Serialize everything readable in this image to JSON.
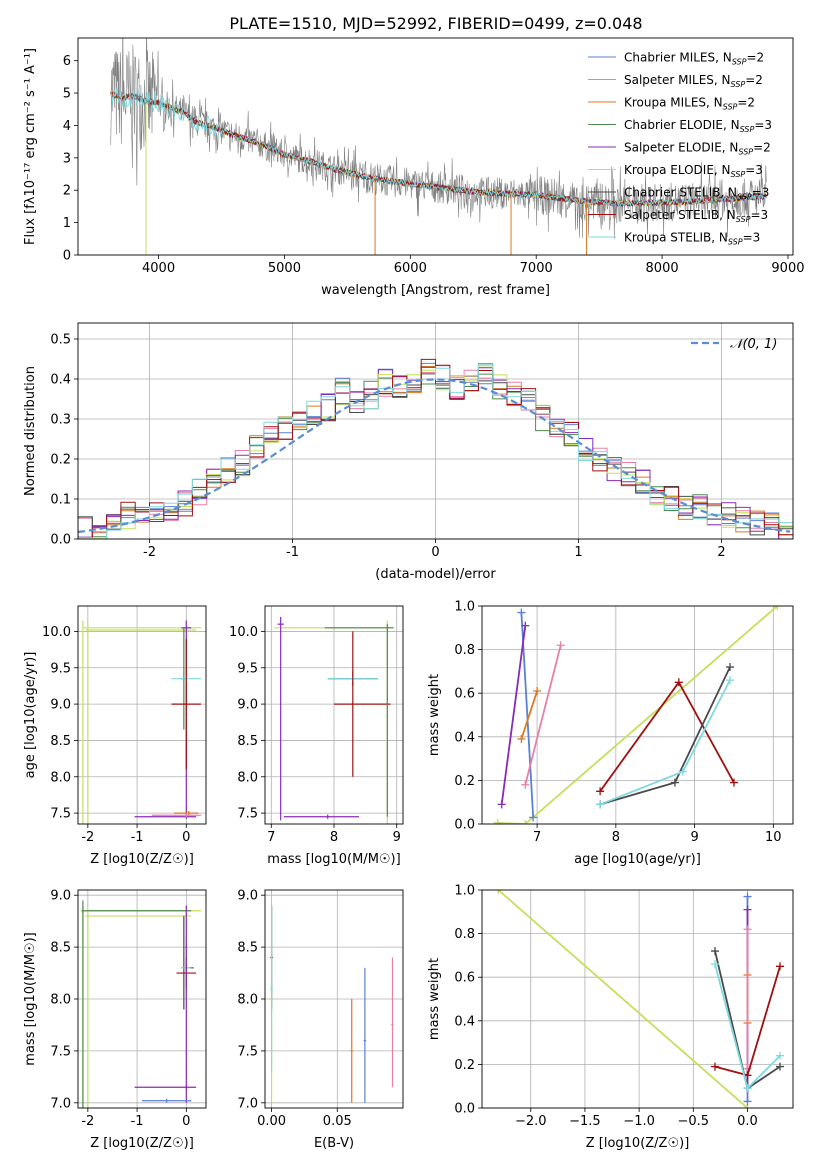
{
  "figure": {
    "title": "PLATE=1510, MJD=52992, FIBERID=0499, z=0.048"
  },
  "colors": {
    "Chabrier MILES": "#5b7fd6",
    "Salpeter MILES": "#e97fa8",
    "Kroupa MILES": "#d97a1e",
    "Chabrier ELODIE": "#4d8a4d",
    "Salpeter ELODIE": "#8a2ab8",
    "Kroupa ELODIE": "#c3e05a",
    "Chabrier STELIB": "#4a4a4a",
    "Salpeter STELIB": "#a01010",
    "Kroupa STELIB": "#7ed9e0",
    "data": "#7f7f7f",
    "gaussian": "#5b8dd6"
  },
  "chart_data": [
    {
      "id": "spectrum",
      "type": "line",
      "xlabel": "wavelength [Angstrom, rest frame]",
      "ylabel": "Flux [fλ10⁻¹⁷ erg cm⁻² s⁻¹ A⁻¹]",
      "xlim": [
        3360,
        9040
      ],
      "ylim": [
        0,
        6.7
      ],
      "xticks": [
        4000,
        5000,
        6000,
        7000,
        8000,
        9000
      ],
      "yticks": [
        0,
        1,
        2,
        3,
        4,
        5,
        6
      ],
      "legend_position": "top-right",
      "legend": [
        {
          "model": "Chabrier MILES",
          "label": "Chabrier MILES, N",
          "sub": "SSP",
          "eq": "=2"
        },
        {
          "model": "Salpeter MILES",
          "label": "Salpeter MILES, N",
          "sub": "SSP",
          "eq": "=2"
        },
        {
          "model": "Kroupa MILES",
          "label": "Kroupa MILES, N",
          "sub": "SSP",
          "eq": "=2"
        },
        {
          "model": "Chabrier ELODIE",
          "label": "Chabrier ELODIE, N",
          "sub": "SSP",
          "eq": "=3"
        },
        {
          "model": "Salpeter ELODIE",
          "label": "Salpeter ELODIE, N",
          "sub": "SSP",
          "eq": "=2"
        },
        {
          "model": "Kroupa ELODIE",
          "label": "Kroupa ELODIE, N",
          "sub": "SSP",
          "eq": "=3"
        },
        {
          "model": "Chabrier STELIB",
          "label": "Chabrier STELIB, N",
          "sub": "SSP",
          "eq": "=3"
        },
        {
          "model": "Salpeter STELIB",
          "label": "Salpeter STELIB, N",
          "sub": "SSP",
          "eq": "=3"
        },
        {
          "model": "Kroupa STELIB",
          "label": "Kroupa STELIB, N",
          "sub": "SSP",
          "eq": "=3"
        }
      ],
      "data_range": [
        3620,
        8830
      ],
      "continuum": [
        [
          3620,
          5.0
        ],
        [
          3700,
          4.85
        ],
        [
          3800,
          4.9
        ],
        [
          3900,
          4.75
        ],
        [
          4000,
          4.7
        ],
        [
          4100,
          4.55
        ],
        [
          4200,
          4.4
        ],
        [
          4300,
          4.1
        ],
        [
          4400,
          4.0
        ],
        [
          4600,
          3.7
        ],
        [
          4800,
          3.45
        ],
        [
          5000,
          3.1
        ],
        [
          5200,
          2.9
        ],
        [
          5400,
          2.65
        ],
        [
          5600,
          2.45
        ],
        [
          5800,
          2.3
        ],
        [
          6000,
          2.2
        ],
        [
          6200,
          2.1
        ],
        [
          6400,
          2.0
        ],
        [
          6600,
          1.92
        ],
        [
          6800,
          1.9
        ],
        [
          7000,
          1.85
        ],
        [
          7200,
          1.75
        ],
        [
          7400,
          1.65
        ],
        [
          7600,
          1.6
        ],
        [
          7800,
          1.6
        ],
        [
          8000,
          1.62
        ],
        [
          8200,
          1.65
        ],
        [
          8400,
          1.7
        ],
        [
          8600,
          1.75
        ],
        [
          8800,
          1.8
        ]
      ]
    },
    {
      "id": "residuals",
      "type": "histogram",
      "xlabel": "(data-model)/error",
      "ylabel": "Normed distribution",
      "xlim": [
        -2.5,
        2.5
      ],
      "ylim": [
        0,
        0.54
      ],
      "xticks": [
        -2,
        -1,
        0,
        1,
        2
      ],
      "yticks": [
        0.0,
        0.1,
        0.2,
        0.3,
        0.4,
        0.5
      ],
      "ytick_labels": [
        "0.0",
        "0.1",
        "0.2",
        "0.3",
        "0.4",
        "0.5"
      ],
      "grid": true,
      "legend_position": "top-right",
      "gaussian_label": "𝒩(0, 1)",
      "bin_width": 0.1,
      "bin_start": -2.5,
      "reference": [
        0.025,
        0.03,
        0.04,
        0.06,
        0.062,
        0.063,
        0.07,
        0.09,
        0.12,
        0.14,
        0.17,
        0.19,
        0.23,
        0.27,
        0.28,
        0.29,
        0.31,
        0.33,
        0.37,
        0.34,
        0.36,
        0.39,
        0.38,
        0.4,
        0.42,
        0.4,
        0.38,
        0.39,
        0.41,
        0.38,
        0.36,
        0.35,
        0.3,
        0.28,
        0.26,
        0.22,
        0.2,
        0.17,
        0.16,
        0.14,
        0.12,
        0.1,
        0.08,
        0.08,
        0.06,
        0.06,
        0.05,
        0.04,
        0.03,
        0.02
      ]
    },
    {
      "id": "age-vs-Z",
      "type": "errorbar",
      "xlabel": "Z [log10(Z/Z☉)]",
      "ylabel": "age  [log10(age/yr)]",
      "xlim": [
        -2.2,
        0.4
      ],
      "ylim": [
        7.35,
        10.35
      ],
      "xticks": [
        -2,
        -1,
        0
      ],
      "yticks": [
        7.5,
        8.0,
        8.5,
        9.0,
        9.5,
        10.0
      ],
      "grid": true,
      "points": [
        {
          "model": "Kroupa ELODIE",
          "x": -2.1,
          "y": 10.05,
          "xerr": [
            0.02,
            2.4
          ],
          "yerr": [
            2.7,
            0.1
          ]
        },
        {
          "model": "Kroupa ELODIE",
          "x": -2.0,
          "y": 10.02,
          "xerr": [
            0.05,
            2.2
          ],
          "yerr": [
            2.7,
            0.1
          ]
        },
        {
          "model": "Salpeter ELODIE",
          "x": 0.0,
          "y": 10.05,
          "xerr": [
            0.1,
            0.1
          ],
          "yerr": [
            2.6,
            0.1
          ]
        },
        {
          "model": "Salpeter ELODIE",
          "x": 0.0,
          "y": 7.45,
          "xerr": [
            1.05,
            0.2
          ],
          "yerr": [
            0.03,
            0.03
          ]
        },
        {
          "model": "Chabrier ELODIE",
          "x": -0.05,
          "y": 9.35,
          "xerr": [
            0.05,
            0.05
          ],
          "yerr": [
            0.7,
            0.7
          ]
        },
        {
          "model": "Kroupa STELIB",
          "x": 0.0,
          "y": 9.35,
          "xerr": [
            0.3,
            0.3
          ],
          "yerr": [
            0.05,
            0.05
          ]
        },
        {
          "model": "Salpeter STELIB",
          "x": 0.0,
          "y": 9.0,
          "xerr": [
            0.3,
            0.3
          ],
          "yerr": [
            0.9,
            0.9
          ]
        },
        {
          "model": "Salpeter MILES",
          "x": 0.0,
          "y": 7.47,
          "xerr": [
            0.7,
            0.3
          ],
          "yerr": [
            0.03,
            0.03
          ]
        },
        {
          "model": "Kroupa MILES",
          "x": 0.05,
          "y": 7.5,
          "xerr": [
            0.3,
            0.2
          ],
          "yerr": [
            0.03,
            0.03
          ]
        }
      ]
    },
    {
      "id": "age-vs-mass",
      "type": "errorbar",
      "xlabel": "mass [log10(M/M☉)]",
      "xlim": [
        6.9,
        9.1
      ],
      "ylim": [
        7.35,
        10.35
      ],
      "xticks": [
        7,
        8,
        9
      ],
      "yticks": [
        7.5,
        8.0,
        8.5,
        9.0,
        9.5,
        10.0
      ],
      "grid": true,
      "points": [
        {
          "model": "Kroupa ELODIE",
          "x": 8.85,
          "y": 10.05,
          "xerr": [
            1.8,
            0.1
          ],
          "yerr": [
            2.7,
            0.1
          ]
        },
        {
          "model": "Salpeter ELODIE",
          "x": 7.15,
          "y": 10.1,
          "xerr": [
            0.05,
            0.05
          ],
          "yerr": [
            2.7,
            0.1
          ]
        },
        {
          "model": "Salpeter ELODIE",
          "x": 7.9,
          "y": 7.45,
          "xerr": [
            0.7,
            0.5
          ],
          "yerr": [
            0.03,
            0.03
          ]
        },
        {
          "model": "Chabrier STELIB",
          "x": 8.3,
          "y": 9.35,
          "xerr": [
            0.4,
            0.4
          ],
          "yerr": [
            0.1,
            0.1
          ]
        },
        {
          "model": "Kroupa STELIB",
          "x": 8.3,
          "y": 9.35,
          "xerr": [
            0.4,
            0.4
          ],
          "yerr": [
            0.05,
            0.05
          ]
        },
        {
          "model": "Salpeter STELIB",
          "x": 8.3,
          "y": 9.0,
          "xerr": [
            0.3,
            0.6
          ],
          "yerr": [
            1.0,
            1.0
          ]
        },
        {
          "model": "Chabrier ELODIE",
          "x": 8.85,
          "y": 10.05,
          "xerr": [
            1.0,
            0.1
          ],
          "yerr": [
            2.6,
            0.05
          ]
        }
      ]
    },
    {
      "id": "weight-vs-age",
      "type": "line",
      "xlabel": "age  [log10(age/yr)]",
      "ylabel": "mass weight",
      "xlim": [
        6.3,
        10.25
      ],
      "ylim": [
        0.0,
        1.0
      ],
      "xticks": [
        7,
        8,
        9,
        10
      ],
      "yticks": [
        0.0,
        0.2,
        0.4,
        0.6,
        0.8,
        1.0
      ],
      "grid": true,
      "series": [
        {
          "model": "Kroupa ELODIE",
          "points": [
            [
              6.5,
              0.005
            ],
            [
              6.85,
              0.0
            ],
            [
              10.05,
              1.0
            ]
          ]
        },
        {
          "model": "Chabrier MILES",
          "points": [
            [
              6.8,
              0.97
            ],
            [
              6.95,
              0.03
            ]
          ]
        },
        {
          "model": "Salpeter ELODIE",
          "points": [
            [
              6.55,
              0.09
            ],
            [
              6.85,
              0.91
            ]
          ]
        },
        {
          "model": "Kroupa MILES",
          "points": [
            [
              6.8,
              0.39
            ],
            [
              7.0,
              0.61
            ]
          ]
        },
        {
          "model": "Salpeter MILES",
          "points": [
            [
              6.85,
              0.18
            ],
            [
              7.3,
              0.82
            ]
          ]
        },
        {
          "model": "Salpeter STELIB",
          "points": [
            [
              7.8,
              0.15
            ],
            [
              8.8,
              0.65
            ],
            [
              9.5,
              0.19
            ]
          ]
        },
        {
          "model": "Chabrier STELIB",
          "points": [
            [
              7.8,
              0.09
            ],
            [
              8.75,
              0.19
            ],
            [
              9.45,
              0.72
            ]
          ]
        },
        {
          "model": "Kroupa STELIB",
          "points": [
            [
              7.8,
              0.09
            ],
            [
              8.85,
              0.24
            ],
            [
              9.45,
              0.66
            ]
          ]
        }
      ]
    },
    {
      "id": "mass-vs-Z",
      "type": "errorbar",
      "xlabel": "Z [log10(Z/Z☉)]",
      "ylabel": "mass [log10(M/M☉)]",
      "xlim": [
        -2.2,
        0.4
      ],
      "ylim": [
        6.95,
        9.05
      ],
      "xticks": [
        -2,
        -1,
        0
      ],
      "yticks": [
        7.0,
        7.5,
        8.0,
        8.5,
        9.0
      ],
      "grid": true,
      "points": [
        {
          "model": "Kroupa ELODIE",
          "x": -2.1,
          "y": 8.85,
          "xerr": [
            0.02,
            2.4
          ],
          "yerr": [
            1.9,
            0.05
          ]
        },
        {
          "model": "Kroupa ELODIE",
          "x": -2.0,
          "y": 8.8,
          "xerr": [
            0.05,
            2.1
          ],
          "yerr": [
            1.9,
            0.05
          ]
        },
        {
          "model": "Chabrier ELODIE",
          "x": -2.1,
          "y": 8.85,
          "xerr": [
            0.03,
            2.2
          ],
          "yerr": [
            1.9,
            0.1
          ]
        },
        {
          "model": "Chabrier STELIB",
          "x": -0.05,
          "y": 8.3,
          "xerr": [
            0.05,
            0.2
          ],
          "yerr": [
            0.4,
            0.5
          ]
        },
        {
          "model": "Kroupa STELIB",
          "x": 0.0,
          "y": 8.3,
          "xerr": [
            0.1,
            0.1
          ],
          "yerr": [
            0.3,
            0.3
          ]
        },
        {
          "model": "Salpeter STELIB",
          "x": 0.0,
          "y": 8.25,
          "xerr": [
            0.2,
            0.2
          ],
          "yerr": [
            0.15,
            0.15
          ]
        },
        {
          "model": "Salpeter ELODIE",
          "x": 0.0,
          "y": 7.15,
          "xerr": [
            1.05,
            0.2
          ],
          "yerr": [
            0.02,
            0.02
          ]
        },
        {
          "model": "Salpeter ELODIE",
          "x": 0.0,
          "y": 8.5,
          "xerr": [
            0.02,
            0.02
          ],
          "yerr": [
            1.5,
            0.4
          ]
        },
        {
          "model": "Chabrier MILES",
          "x": -0.4,
          "y": 7.02,
          "xerr": [
            0.5,
            0.5
          ],
          "yerr": [
            0.02,
            0.02
          ]
        }
      ]
    },
    {
      "id": "mass-vs-EBV",
      "type": "errorbar",
      "xlabel": "E(B-V)",
      "xlim": [
        -0.005,
        0.1
      ],
      "ylim": [
        6.95,
        9.05
      ],
      "xticks": [
        0.0,
        0.05
      ],
      "xtick_labels": [
        "0.00",
        "0.05"
      ],
      "yticks": [
        7.0,
        7.5,
        8.0,
        8.5,
        9.0
      ],
      "grid": true,
      "points": [
        {
          "model": "Kroupa ELODIE",
          "x": 0.0,
          "y": 8.0,
          "xerr": [
            0.001,
            0.001
          ],
          "yerr": [
            1.0,
            0.9
          ]
        },
        {
          "model": "Chabrier STELIB",
          "x": 0.0,
          "y": 8.4,
          "xerr": [
            0.001,
            0.001
          ],
          "yerr": [
            0.5,
            0.5
          ]
        },
        {
          "model": "Kroupa STELIB",
          "x": 0.0,
          "y": 8.1,
          "xerr": [
            0.001,
            0.001
          ],
          "yerr": [
            0.8,
            0.8
          ]
        },
        {
          "model": "Kroupa MILES",
          "x": 0.061,
          "y": 7.5,
          "xerr": [
            0.001,
            0.001
          ],
          "yerr": [
            0.5,
            0.5
          ]
        },
        {
          "model": "Chabrier MILES",
          "x": 0.071,
          "y": 7.6,
          "xerr": [
            0.001,
            0.001
          ],
          "yerr": [
            0.6,
            0.7
          ]
        },
        {
          "model": "Salpeter MILES",
          "x": 0.092,
          "y": 7.75,
          "xerr": [
            0.001,
            0.001
          ],
          "yerr": [
            0.6,
            0.65
          ]
        }
      ]
    },
    {
      "id": "weight-vs-Z",
      "type": "line",
      "xlabel": "Z [log10(Z/Z☉)]",
      "ylabel": "mass weight",
      "xlim": [
        -2.45,
        0.42
      ],
      "ylim": [
        0.0,
        1.0
      ],
      "xticks": [
        -2.0,
        -1.5,
        -1.0,
        -0.5,
        0.0
      ],
      "xtick_labels": [
        "−2.0",
        "−1.5",
        "−1.0",
        "−0.5",
        "0.0"
      ],
      "yticks": [
        0.0,
        0.2,
        0.4,
        0.6,
        0.8,
        1.0
      ],
      "grid": true,
      "series": [
        {
          "model": "Kroupa ELODIE",
          "points": [
            [
              -2.3,
              1.0
            ],
            [
              0.0,
              0.0
            ]
          ]
        },
        {
          "model": "Chabrier MILES",
          "points": [
            [
              0.0,
              0.97
            ],
            [
              0.0,
              0.03
            ]
          ]
        },
        {
          "model": "Salpeter ELODIE",
          "points": [
            [
              0.0,
              0.91
            ],
            [
              0.0,
              0.09
            ]
          ]
        },
        {
          "model": "Kroupa MILES",
          "points": [
            [
              0.0,
              0.61
            ],
            [
              0.0,
              0.39
            ]
          ]
        },
        {
          "model": "Salpeter MILES",
          "points": [
            [
              0.0,
              0.82
            ],
            [
              0.0,
              0.18
            ]
          ]
        },
        {
          "model": "Salpeter STELIB",
          "points": [
            [
              -0.3,
              0.19
            ],
            [
              0.0,
              0.15
            ],
            [
              0.3,
              0.65
            ]
          ]
        },
        {
          "model": "Chabrier STELIB",
          "points": [
            [
              -0.3,
              0.72
            ],
            [
              0.0,
              0.09
            ],
            [
              0.3,
              0.19
            ]
          ]
        },
        {
          "model": "Kroupa STELIB",
          "points": [
            [
              -0.3,
              0.66
            ],
            [
              0.0,
              0.09
            ],
            [
              0.3,
              0.24
            ]
          ]
        }
      ]
    }
  ]
}
